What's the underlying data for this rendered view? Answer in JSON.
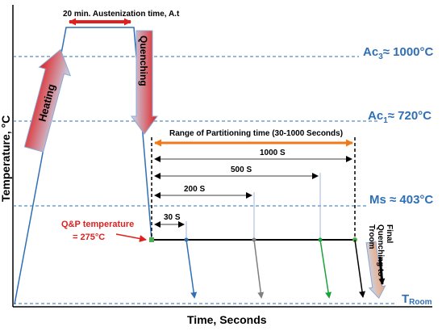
{
  "diagram": {
    "austenization_label": "20 min. Austenization time, A.t",
    "heating_label": "Heating",
    "quenching_label": "Quenching",
    "partitioning_range_label": "Range of Partitioning time (30-1000 Seconds)",
    "qp_temperature_line1": "Q&P temperature",
    "qp_temperature_line2": "= 275°C",
    "final_quenching_label": [
      "Final",
      "Quenching to",
      "Troom"
    ],
    "y_axis_label": "Temperature, °C",
    "x_axis_label": "Time, Seconds",
    "levels": {
      "ac3": {
        "prefix": "Ac",
        "sub": "3",
        "suffix": "≈ 1000°C"
      },
      "ac1": {
        "prefix": "Ac",
        "sub": "1",
        "suffix": "≈ 720°C"
      },
      "ms": {
        "text": "Ms ≈ 403°C"
      },
      "troom": {
        "prefix": "T",
        "sub": "Room"
      }
    },
    "partition_times": [
      "30 S",
      "200 S",
      "500 S",
      "1000 S"
    ],
    "colors": {
      "reference_lines": "#2f6fb5",
      "heating_arrow": "#e01f1f",
      "range_arrow": "#f07a1a",
      "q_and_p_text": "#e01f1f",
      "path_30s": "#2f6fb5",
      "path_200s": "#7f7f7f",
      "path_500s": "#1aa33a",
      "path_1000s": "#000000"
    }
  }
}
